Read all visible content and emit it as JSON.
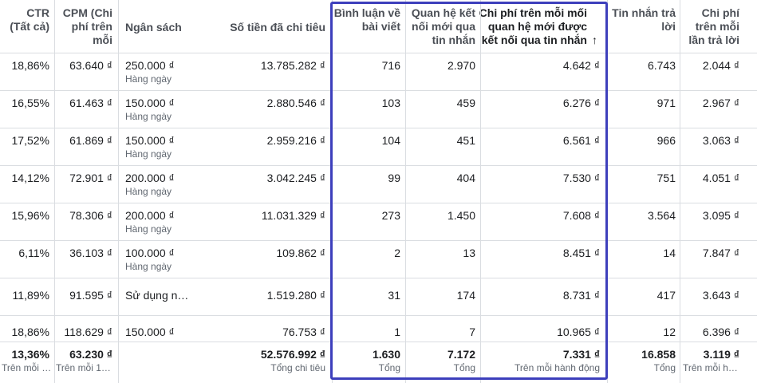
{
  "columns": [
    {
      "key": "ctr",
      "label": "CTR\n(Tất cả)"
    },
    {
      "key": "cpm",
      "label": "CPM (Chi\nphí trên\nmỗi"
    },
    {
      "key": "budget",
      "label": "Ngân sách"
    },
    {
      "key": "spent",
      "label": "Số tiền đã chi tiêu"
    },
    {
      "key": "comments",
      "label": "Bình luận về\nbài viết"
    },
    {
      "key": "new_conn",
      "label": "Quan hệ kết\nnối mới qua\ntin nhắn"
    },
    {
      "key": "cost_new_conn",
      "label": "Chi phí trên mỗi mối\nquan hệ mới được\nkết nối qua tin nhắn",
      "sort_icon": "↑"
    },
    {
      "key": "replies",
      "label": "Tin nhắn trả\nlời"
    },
    {
      "key": "cost_reply",
      "label": "Chi phí\ntrên mỗi\nlần trả lời"
    }
  ],
  "rows": [
    {
      "ctr": "18,86%",
      "cpm": "63.640 ₫",
      "budget": "250.000 ₫",
      "budget_type": "Hàng ngày",
      "spent": "13.785.282 ₫",
      "comments": "716",
      "new_conn": "2.970",
      "cost_new_conn": "4.642 ₫",
      "replies": "6.743",
      "cost_reply": "2.044 ₫"
    },
    {
      "ctr": "16,55%",
      "cpm": "61.463 ₫",
      "budget": "150.000 ₫",
      "budget_type": "Hàng ngày",
      "spent": "2.880.546 ₫",
      "comments": "103",
      "new_conn": "459",
      "cost_new_conn": "6.276 ₫",
      "replies": "971",
      "cost_reply": "2.967 ₫"
    },
    {
      "ctr": "17,52%",
      "cpm": "61.869 ₫",
      "budget": "150.000 ₫",
      "budget_type": "Hàng ngày",
      "spent": "2.959.216 ₫",
      "comments": "104",
      "new_conn": "451",
      "cost_new_conn": "6.561 ₫",
      "replies": "966",
      "cost_reply": "3.063 ₫"
    },
    {
      "ctr": "14,12%",
      "cpm": "72.901 ₫",
      "budget": "200.000 ₫",
      "budget_type": "Hàng ngày",
      "spent": "3.042.245 ₫",
      "comments": "99",
      "new_conn": "404",
      "cost_new_conn": "7.530 ₫",
      "replies": "751",
      "cost_reply": "4.051 ₫"
    },
    {
      "ctr": "15,96%",
      "cpm": "78.306 ₫",
      "budget": "200.000 ₫",
      "budget_type": "Hàng ngày",
      "spent": "11.031.329 ₫",
      "comments": "273",
      "new_conn": "1.450",
      "cost_new_conn": "7.608 ₫",
      "replies": "3.564",
      "cost_reply": "3.095 ₫"
    },
    {
      "ctr": "6,11%",
      "cpm": "36.103 ₫",
      "budget": "100.000 ₫",
      "budget_type": "Hàng ngày",
      "spent": "109.862 ₫",
      "comments": "2",
      "new_conn": "13",
      "cost_new_conn": "8.451 ₫",
      "replies": "14",
      "cost_reply": "7.847 ₫"
    },
    {
      "ctr": "11,89%",
      "cpm": "91.595 ₫",
      "budget": "Sử dụng n…",
      "budget_type": "",
      "spent": "1.519.280 ₫",
      "comments": "31",
      "new_conn": "174",
      "cost_new_conn": "8.731 ₫",
      "replies": "417",
      "cost_reply": "3.643 ₫"
    },
    {
      "ctr": "18,86%",
      "cpm": "118.629 ₫",
      "budget": "150.000 ₫",
      "budget_type": "",
      "spent": "76.753 ₫",
      "comments": "1",
      "new_conn": "7",
      "cost_new_conn": "10.965 ₫",
      "replies": "12",
      "cost_reply": "6.396 ₫"
    }
  ],
  "totals": {
    "ctr": "13,36%",
    "ctr_sub": "Trên mỗi …",
    "cpm": "63.230 ₫",
    "cpm_sub": "Trên mỗi 1…",
    "spent": "52.576.992 ₫",
    "spent_sub": "Tổng chi tiêu",
    "comments": "1.630",
    "comments_sub": "Tổng",
    "new_conn": "7.172",
    "new_conn_sub": "Tổng",
    "cost_new_conn": "7.331 ₫",
    "cost_new_conn_sub": "Trên mỗi hành động",
    "replies": "16.858",
    "replies_sub": "Tổng",
    "cost_reply": "3.119 ₫",
    "cost_reply_sub": "Trên mỗi h…"
  },
  "highlight_color": "#3d3fbc"
}
